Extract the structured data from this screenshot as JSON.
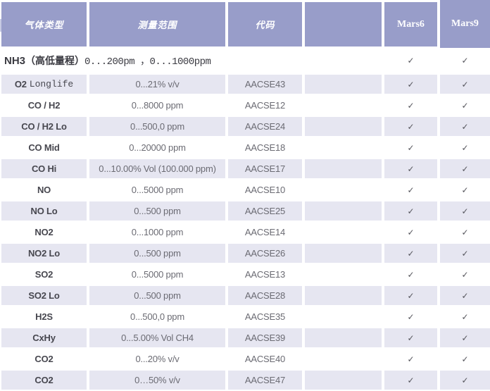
{
  "colors": {
    "header_bg": "#989dc9",
    "stripe_bg": "#e6e6f1",
    "check_color": "#55555c"
  },
  "table": {
    "header": [
      "气体类型",
      "测量范围",
      "代码",
      "",
      "Mars6",
      "Mars9"
    ],
    "check_glyph": "✓",
    "special_row": {
      "gas": "NH3",
      "bracket": "（高低量程）",
      "range": "0...200pm ，0...1000ppm",
      "mars6": "✓",
      "mars9": "✓"
    },
    "rows": [
      {
        "gas": "O2",
        "gas_suffix": "Longlife",
        "range": "0...21% v/v",
        "code": "AACSE43",
        "mars6": "✓",
        "mars9": "✓"
      },
      {
        "gas": "CO / H2",
        "gas_suffix": "",
        "range": "0...8000 ppm",
        "code": "AACSE12",
        "mars6": "✓",
        "mars9": "✓"
      },
      {
        "gas": "CO / H2 Lo",
        "gas_suffix": "",
        "range": "0...500,0 ppm",
        "code": "AACSE24",
        "mars6": "✓",
        "mars9": "✓"
      },
      {
        "gas": "CO Mid",
        "gas_suffix": "",
        "range": "0...20000 ppm",
        "code": "AACSE18",
        "mars6": "✓",
        "mars9": "✓"
      },
      {
        "gas": "CO Hi",
        "gas_suffix": "",
        "range": "0...10.00% Vol (100.000 ppm)",
        "code": "AACSE17",
        "mars6": "✓",
        "mars9": "✓"
      },
      {
        "gas": "NO",
        "gas_suffix": "",
        "range": "0...5000 ppm",
        "code": "AACSE10",
        "mars6": "✓",
        "mars9": "✓"
      },
      {
        "gas": "NO Lo",
        "gas_suffix": "",
        "range": "0...500 ppm",
        "code": "AACSE25",
        "mars6": "✓",
        "mars9": "✓"
      },
      {
        "gas": "NO2",
        "gas_suffix": "",
        "range": "0...1000 ppm",
        "code": "AACSE14",
        "mars6": "✓",
        "mars9": "✓"
      },
      {
        "gas": "NO2 Lo",
        "gas_suffix": "",
        "range": "0...500 ppm",
        "code": "AACSE26",
        "mars6": "✓",
        "mars9": "✓"
      },
      {
        "gas": "SO2",
        "gas_suffix": "",
        "range": "0...5000 ppm",
        "code": "AACSE13",
        "mars6": "✓",
        "mars9": "✓"
      },
      {
        "gas": "SO2 Lo",
        "gas_suffix": "",
        "range": "0...500 ppm",
        "code": "AACSE28",
        "mars6": "✓",
        "mars9": "✓"
      },
      {
        "gas": "H2S",
        "gas_suffix": "",
        "range": "0...500,0 ppm",
        "code": "AACSE35",
        "mars6": "✓",
        "mars9": "✓"
      },
      {
        "gas": "CxHy",
        "gas_suffix": "",
        "range": "0...5.00% Vol CH4",
        "code": "AACSE39",
        "mars6": "✓",
        "mars9": "✓"
      },
      {
        "gas": "CO2",
        "gas_suffix": "",
        "range": "0...20% v/v",
        "code": "AACSE40",
        "mars6": "✓",
        "mars9": "✓"
      },
      {
        "gas": "CO2",
        "gas_suffix": "",
        "range": "0…50% v/v",
        "code": "AACSE47",
        "mars6": "✓",
        "mars9": "✓"
      }
    ]
  }
}
